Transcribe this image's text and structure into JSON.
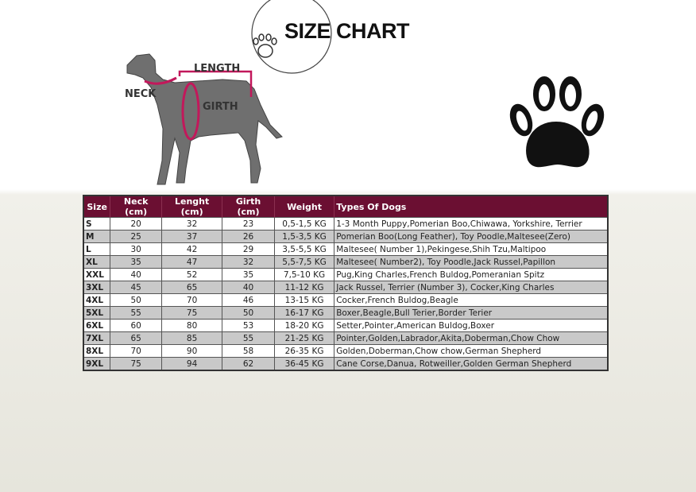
{
  "title": "SIZE CHART",
  "diagram_labels": {
    "length": "LENGTH",
    "neck": "NECK",
    "girth": "GIRTH"
  },
  "colors": {
    "header": "#6b0f32",
    "measure": "#c2185b",
    "alt_row": "#c9c9c9"
  },
  "table": {
    "headers": [
      "Size",
      "Neck (cm)",
      "Lenght (cm)",
      "Girth (cm)",
      "Weight",
      "Types Of Dogs"
    ],
    "rows": [
      [
        "S",
        "20",
        "32",
        "23",
        "0,5-1,5 KG",
        "1-3 Month Puppy,Pomerian Boo,Chiwawa, Yorkshire, Terrier"
      ],
      [
        "M",
        "25",
        "37",
        "26",
        "1,5-3,5 KG",
        "Pomerian Boo(Long Feather), Toy Poodle,Maltesee(Zero)"
      ],
      [
        "L",
        "30",
        "42",
        "29",
        "3,5-5,5 KG",
        "Maltesee( Number 1),Pekingese,Shih Tzu,Maltipoo"
      ],
      [
        "XL",
        "35",
        "47",
        "32",
        "5,5-7,5 KG",
        "Maltesee( Number2), Toy Poodle,Jack Russel,Papillon"
      ],
      [
        "XXL",
        "40",
        "52",
        "35",
        "7,5-10 KG",
        "Pug,King Charles,French Buldog,Pomeranian Spitz"
      ],
      [
        "3XL",
        "45",
        "65",
        "40",
        "11-12 KG",
        "Jack Russel, Terrier (Number 3), Cocker,King Charles"
      ],
      [
        "4XL",
        "50",
        "70",
        "46",
        "13-15 KG",
        "Cocker,French Buldog,Beagle"
      ],
      [
        "5XL",
        "55",
        "75",
        "50",
        "16-17 KG",
        "Boxer,Beagle,Bull Terier,Border Terier"
      ],
      [
        "6XL",
        "60",
        "80",
        "53",
        "18-20 KG",
        "Setter,Pointer,American Buldog,Boxer"
      ],
      [
        "7XL",
        "65",
        "85",
        "55",
        "21-25 KG",
        "Pointer,Golden,Labrador,Akita,Doberman,Chow Chow"
      ],
      [
        "8XL",
        "70",
        "90",
        "58",
        "26-35 KG",
        "Golden,Doberman,Chow chow,German Shepherd"
      ],
      [
        "9XL",
        "75",
        "94",
        "62",
        "36-45 KG",
        "Cane Corse,Danua, Rotweiller,Golden German Shepherd"
      ]
    ]
  }
}
